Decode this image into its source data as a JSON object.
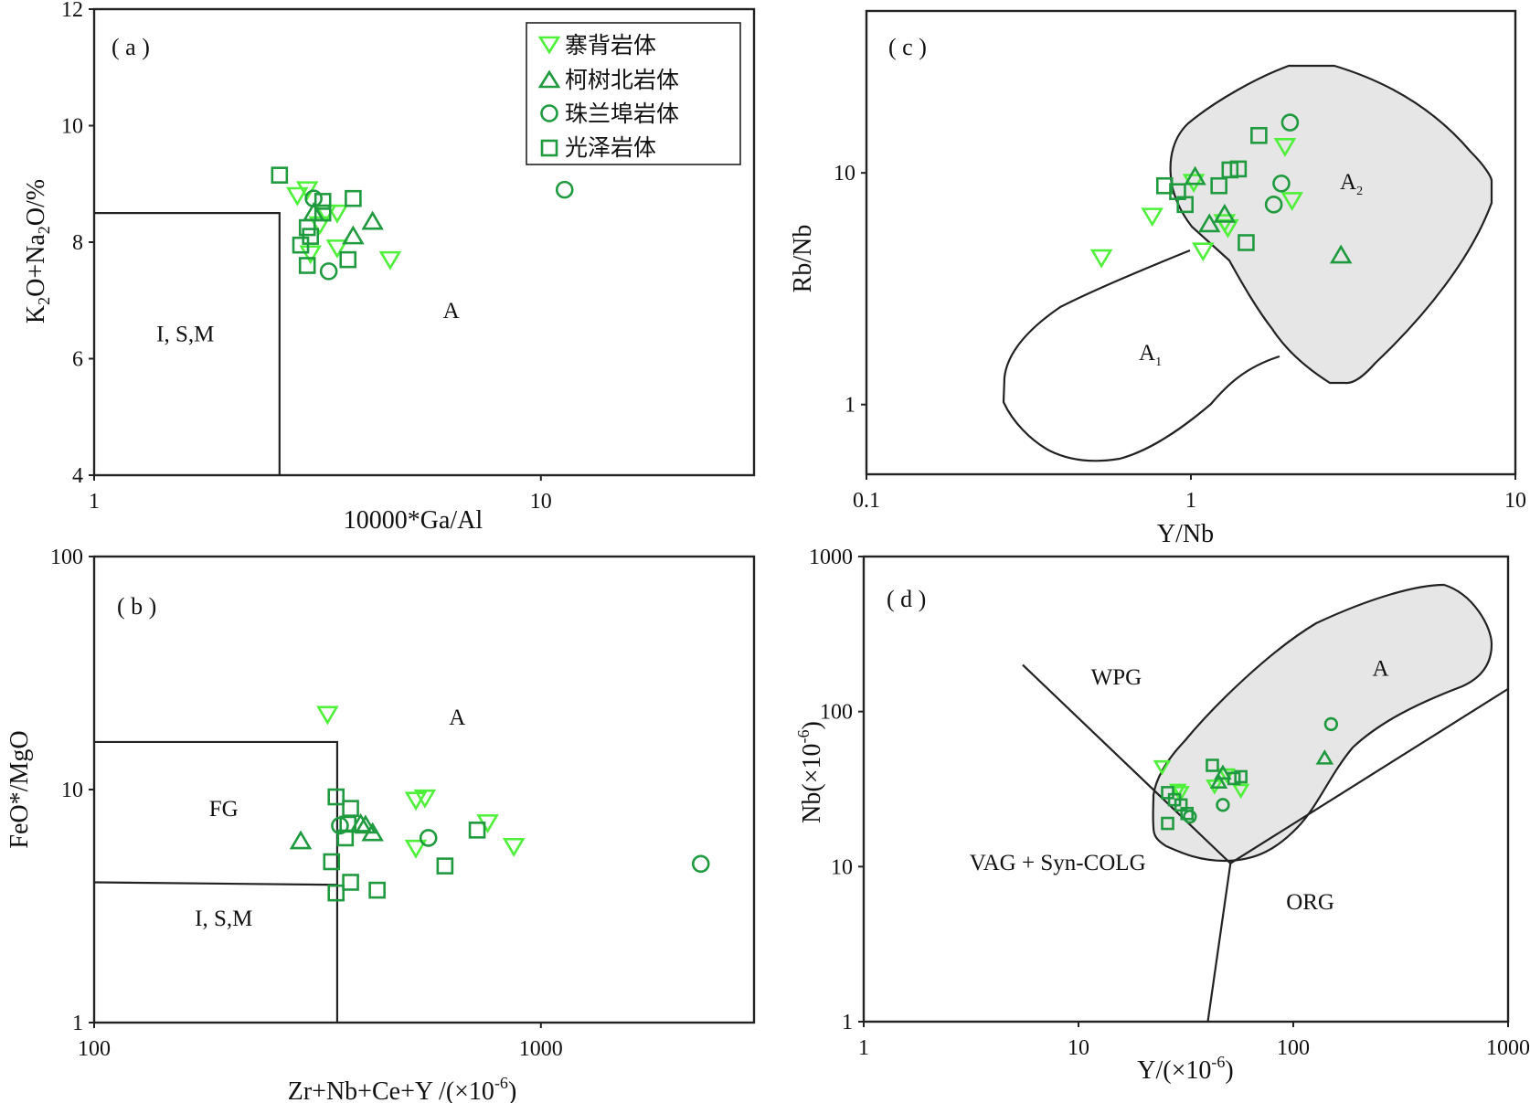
{
  "colors": {
    "bright_green": "#4ef03a",
    "dark_green": "#1f9a3f",
    "field_grey": "#e6e6e6",
    "line": "#222222"
  },
  "legend": {
    "items": [
      {
        "key": "saibei",
        "label": "寨背岩体",
        "marker": "triangle-down"
      },
      {
        "key": "keshubei",
        "label": "柯树北岩体",
        "marker": "triangle-up"
      },
      {
        "key": "zhulanbu",
        "label": "珠兰埠岩体",
        "marker": "circle"
      },
      {
        "key": "guangze",
        "label": "光泽岩体",
        "marker": "square"
      }
    ]
  },
  "chart_data": [
    {
      "id": "a",
      "type": "scatter",
      "panel_label": "( a )",
      "xlabel": "10000*Ga/Al",
      "ylabel": "K2O+Na2O/%",
      "xscale": "log",
      "xlim": [
        1,
        30
      ],
      "yscale": "linear",
      "ylim": [
        4,
        12
      ],
      "xticks": [
        {
          "v": 1,
          "t": "1"
        },
        {
          "v": 10,
          "t": "10"
        }
      ],
      "yticks": [
        {
          "v": 4,
          "t": "4"
        },
        {
          "v": 6,
          "t": "6"
        },
        {
          "v": 8,
          "t": "8"
        },
        {
          "v": 10,
          "t": "10"
        },
        {
          "v": 12,
          "t": "12"
        }
      ],
      "regions": [
        {
          "label": "I, S,M",
          "x": 1.6,
          "y": 6.3
        },
        {
          "label": "A",
          "x": 6.3,
          "y": 6.7
        }
      ],
      "boundaries": [
        {
          "points": [
            [
              1,
              8.5
            ],
            [
              2.6,
              8.5
            ],
            [
              2.6,
              4
            ]
          ]
        }
      ],
      "series": [
        {
          "key": "saibei",
          "points": [
            [
              3.0,
              8.9
            ],
            [
              2.85,
              8.8
            ],
            [
              3.3,
              8.5
            ],
            [
              3.5,
              8.5
            ],
            [
              3.2,
              8.3
            ],
            [
              3.5,
              7.9
            ],
            [
              3.05,
              7.8
            ],
            [
              4.6,
              7.7
            ]
          ]
        },
        {
          "key": "keshubei",
          "points": [
            [
              3.1,
              8.5
            ],
            [
              4.2,
              8.35
            ],
            [
              3.8,
              8.1
            ]
          ]
        },
        {
          "key": "zhulanbu",
          "points": [
            [
              3.1,
              8.75
            ],
            [
              11.3,
              8.9
            ],
            [
              3.35,
              7.5
            ]
          ]
        },
        {
          "key": "guangze",
          "points": [
            [
              2.6,
              9.15
            ],
            [
              3.25,
              8.7
            ],
            [
              3.8,
              8.75
            ],
            [
              3.25,
              8.5
            ],
            [
              3.0,
              8.25
            ],
            [
              3.05,
              8.1
            ],
            [
              2.9,
              7.95
            ],
            [
              3.7,
              7.7
            ],
            [
              3.0,
              7.6
            ]
          ]
        }
      ]
    },
    {
      "id": "b",
      "type": "scatter",
      "panel_label": "( b )",
      "xlabel": "Zr+Nb+Ce+Y /(×10-6)",
      "ylabel": "FeO*/MgO",
      "xscale": "log",
      "xlim": [
        100,
        3000
      ],
      "yscale": "log",
      "ylim": [
        1,
        100
      ],
      "xticks": [
        {
          "v": 100,
          "t": "100"
        },
        {
          "v": 1000,
          "t": "1000"
        }
      ],
      "yticks": [
        {
          "v": 1,
          "t": "1"
        },
        {
          "v": 10,
          "t": "10"
        },
        {
          "v": 100,
          "t": "100"
        }
      ],
      "regions": [
        {
          "label": "FG",
          "x": 195,
          "y": 7.7
        },
        {
          "label": "I, S,M",
          "x": 195,
          "y": 2.6
        },
        {
          "label": "A",
          "x": 650,
          "y": 19
        }
      ],
      "boundaries": [
        {
          "points": [
            [
              100,
              16
            ],
            [
              350,
              16
            ],
            [
              350,
              1
            ]
          ]
        },
        {
          "points": [
            [
              100,
              4
            ],
            [
              350,
              3.9
            ]
          ]
        }
      ],
      "series": [
        {
          "key": "saibei",
          "points": [
            [
              333,
              21
            ],
            [
              525,
              9
            ],
            [
              550,
              9.2
            ],
            [
              760,
              7.2
            ],
            [
              870,
              5.7
            ],
            [
              525,
              5.6
            ]
          ]
        },
        {
          "key": "keshubei",
          "points": [
            [
              290,
              6
            ],
            [
              405,
              7
            ],
            [
              395,
              7.1
            ],
            [
              420,
              6.5
            ]
          ]
        },
        {
          "key": "zhulanbu",
          "points": [
            [
              355,
              7.0
            ],
            [
              560,
              6.2
            ],
            [
              2280,
              4.8
            ]
          ]
        },
        {
          "key": "guangze",
          "points": [
            [
              348,
              9.3
            ],
            [
              375,
              8.3
            ],
            [
              370,
              7.1
            ],
            [
              365,
              6.2
            ],
            [
              340,
              4.9
            ],
            [
              375,
              4.0
            ],
            [
              348,
              3.6
            ],
            [
              430,
              3.7
            ],
            [
              610,
              4.7
            ],
            [
              720,
              6.7
            ]
          ]
        }
      ]
    },
    {
      "id": "c",
      "type": "scatter",
      "panel_label": "( c )",
      "xlabel": "Y/Nb",
      "ylabel": "Rb/Nb",
      "xscale": "log",
      "xlim": [
        0.1,
        10
      ],
      "yscale": "log",
      "ylim": [
        0.5,
        50
      ],
      "xticks": [
        {
          "v": 0.1,
          "t": "0.1"
        },
        {
          "v": 1,
          "t": "1"
        },
        {
          "v": 10,
          "t": "10"
        }
      ],
      "yticks": [
        {
          "v": 1,
          "t": "1"
        },
        {
          "v": 10,
          "t": "10"
        }
      ],
      "regions": [
        {
          "label": "A1",
          "x": 0.8,
          "y": 2.1
        },
        {
          "label": "A2",
          "x": 5.0,
          "y": 9.8
        }
      ],
      "series": [
        {
          "key": "saibei",
          "points": [
            [
              0.53,
              4.3
            ],
            [
              0.76,
              6.5
            ],
            [
              1.02,
              9.1
            ],
            [
              1.27,
              6.1
            ],
            [
              1.3,
              5.8
            ],
            [
              1.09,
              4.6
            ],
            [
              1.95,
              13.0
            ],
            [
              2.05,
              7.6
            ]
          ]
        },
        {
          "key": "keshubei",
          "points": [
            [
              1.03,
              9.6
            ],
            [
              1.27,
              6.6
            ],
            [
              1.14,
              6.0
            ],
            [
              2.9,
              4.4
            ]
          ]
        },
        {
          "key": "zhulanbu",
          "points": [
            [
              2.02,
              16.5
            ],
            [
              1.9,
              9.0
            ],
            [
              1.8,
              7.3
            ]
          ]
        },
        {
          "key": "guangze",
          "points": [
            [
              1.62,
              14.5
            ],
            [
              1.32,
              10.3
            ],
            [
              1.4,
              10.4
            ],
            [
              0.83,
              8.8
            ],
            [
              0.91,
              8.3
            ],
            [
              0.96,
              7.3
            ],
            [
              1.22,
              8.8
            ],
            [
              1.48,
              5.0
            ]
          ]
        }
      ]
    },
    {
      "id": "d",
      "type": "scatter",
      "panel_label": "( d )",
      "xlabel": "Y/(×10-6)",
      "ylabel": "Nb(×10-6)",
      "xscale": "log",
      "xlim": [
        1,
        1000
      ],
      "yscale": "log",
      "ylim": [
        1,
        1000
      ],
      "xticks": [
        {
          "v": 1,
          "t": "1"
        },
        {
          "v": 10,
          "t": "10"
        },
        {
          "v": 100,
          "t": "100"
        },
        {
          "v": 1000,
          "t": "1000"
        }
      ],
      "yticks": [
        {
          "v": 1,
          "t": "1"
        },
        {
          "v": 10,
          "t": "10"
        },
        {
          "v": 100,
          "t": "100"
        },
        {
          "v": 1000,
          "t": "1000"
        }
      ],
      "regions": [
        {
          "label": "WPG",
          "x": 15,
          "y": 150
        },
        {
          "label": "VAG + Syn-COLG",
          "x": 8,
          "y": 9.5
        },
        {
          "label": "ORG",
          "x": 120,
          "y": 5.3
        },
        {
          "label": "A",
          "x": 255,
          "y": 170
        }
      ],
      "boundaries": [
        {
          "points": [
            [
              5.5,
              200
            ],
            [
              51,
              10.5
            ],
            [
              1000,
              140
            ]
          ]
        },
        {
          "points": [
            [
              51,
              10.5
            ],
            [
              40,
              1
            ]
          ]
        }
      ],
      "series": [
        {
          "key": "saibei",
          "points": [
            [
              24.5,
              44
            ],
            [
              29,
              31
            ],
            [
              30,
              30
            ],
            [
              43,
              33
            ],
            [
              49,
              39
            ],
            [
              57,
              31
            ]
          ]
        },
        {
          "key": "keshubei",
          "points": [
            [
              45,
              35
            ],
            [
              47,
              40
            ],
            [
              140,
              50
            ]
          ]
        },
        {
          "key": "zhulanbu",
          "points": [
            [
              33,
              21
            ],
            [
              47,
              25
            ],
            [
              150,
              83
            ]
          ]
        },
        {
          "key": "guangze",
          "points": [
            [
              26,
              30
            ],
            [
              28,
              27
            ],
            [
              30,
              25
            ],
            [
              32,
              22
            ],
            [
              42,
              45
            ],
            [
              53,
              37
            ],
            [
              57,
              38
            ],
            [
              26,
              19
            ]
          ]
        }
      ]
    }
  ]
}
